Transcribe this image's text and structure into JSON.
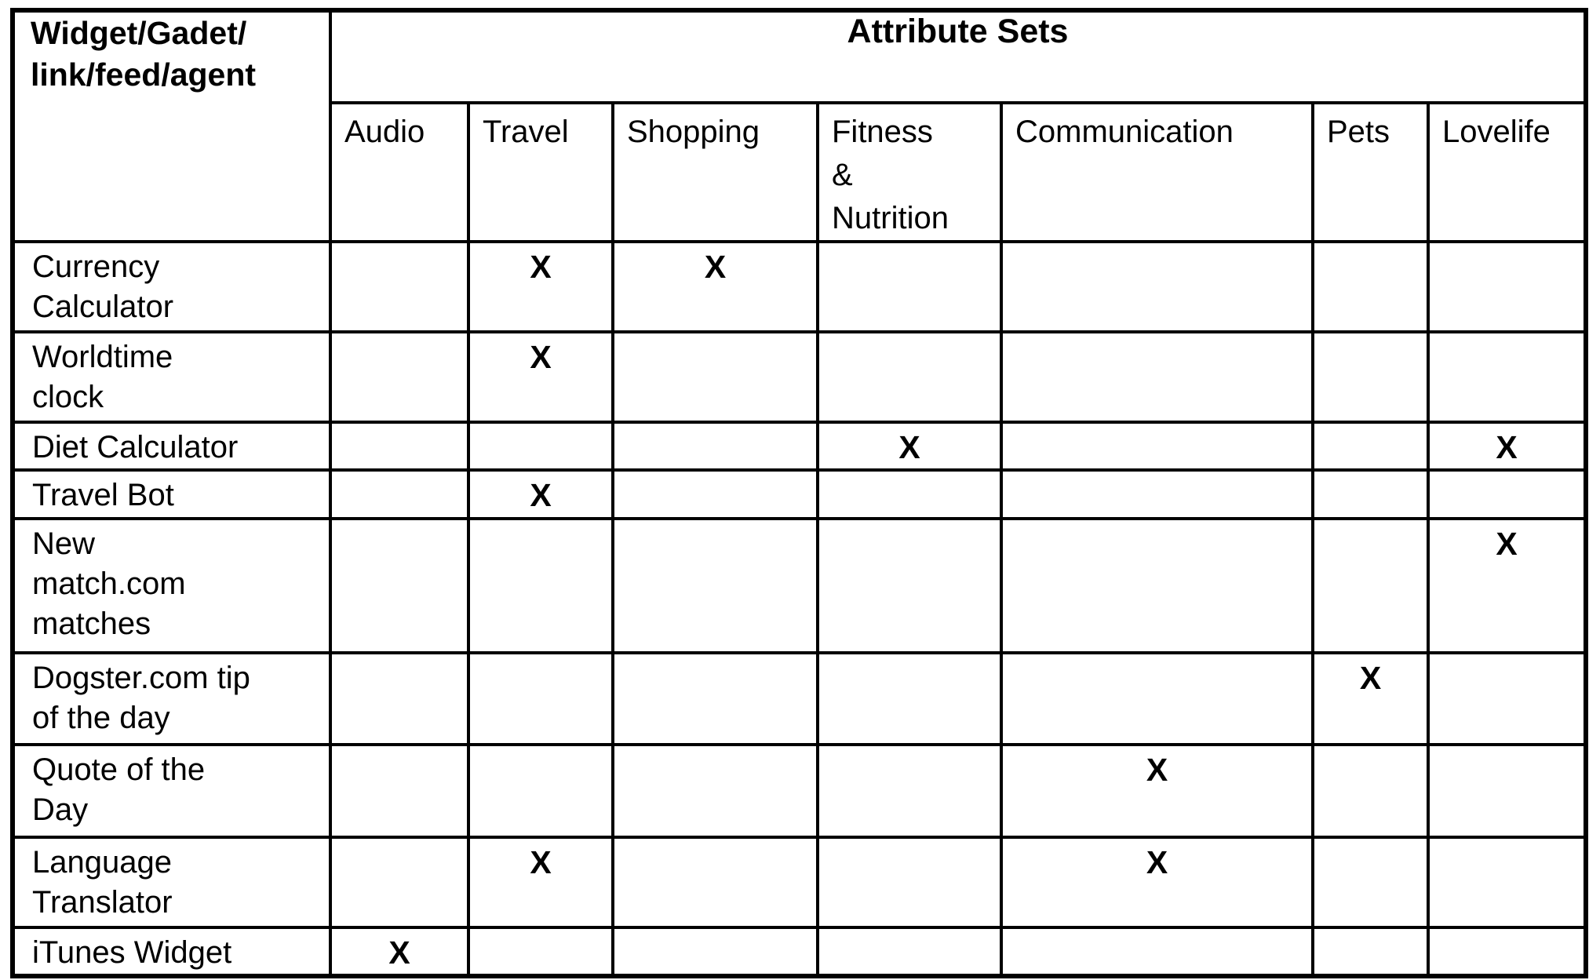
{
  "table": {
    "corner_header": "Widget/Gadet/\nlink/feed/agent",
    "group_header": "Attribute Sets",
    "columns": [
      "Audio",
      "Travel",
      "Shopping",
      "Fitness\n&\nNutrition",
      "Communication",
      "Pets",
      "Lovelife"
    ],
    "mark_glyph": "X",
    "rows": [
      {
        "label": "Currency\nCalculator",
        "cells": [
          "",
          "X",
          "X",
          "",
          "",
          "",
          ""
        ]
      },
      {
        "label": "Worldtime\nclock",
        "cells": [
          "",
          "X",
          "",
          "",
          "",
          "",
          ""
        ]
      },
      {
        "label": "Diet Calculator",
        "cells": [
          "",
          "",
          "",
          "X",
          "",
          "",
          "X"
        ]
      },
      {
        "label": "Travel Bot",
        "cells": [
          "",
          "X",
          "",
          "",
          "",
          "",
          ""
        ]
      },
      {
        "label": "New\nmatch.com\nmatches",
        "cells": [
          "",
          "",
          "",
          "",
          "",
          "",
          "X"
        ]
      },
      {
        "label": "Dogster.com tip\nof the day",
        "cells": [
          "",
          "",
          "",
          "",
          "",
          "X",
          ""
        ]
      },
      {
        "label": "Quote of the\nDay",
        "cells": [
          "",
          "",
          "",
          "",
          "X",
          "",
          ""
        ]
      },
      {
        "label": "Language\nTranslator",
        "cells": [
          "",
          "X",
          "",
          "",
          "X",
          "",
          ""
        ]
      },
      {
        "label": "iTunes Widget",
        "cells": [
          "X",
          "",
          "",
          "",
          "",
          "",
          ""
        ]
      }
    ]
  },
  "colors": {
    "ink": "#000000",
    "paper": "#ffffff"
  }
}
